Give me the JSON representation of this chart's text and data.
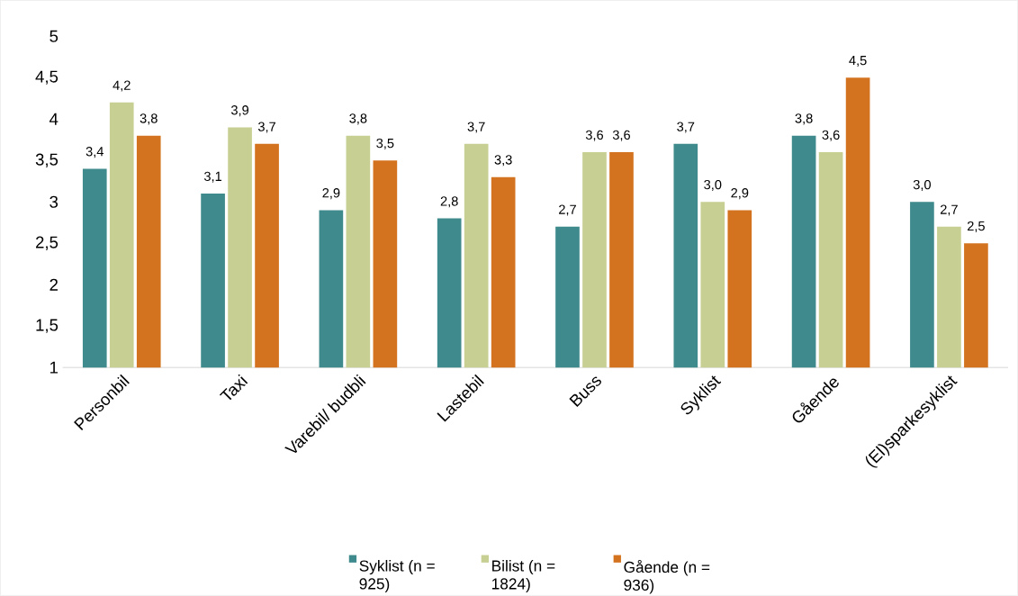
{
  "chart_data": {
    "type": "bar",
    "categories": [
      "Personbil",
      "Taxi",
      "Varebil/ budbli",
      "Lastebil",
      "Buss",
      "Syklist",
      "Gående",
      "(El)sparkesyklist"
    ],
    "series": [
      {
        "name": "Syklist (n = 925)",
        "color": "#3f8a8c",
        "values": [
          3.4,
          3.1,
          2.9,
          2.8,
          2.7,
          3.7,
          3.8,
          3.0
        ],
        "value_labels": [
          "3,4",
          "3,1",
          "2,9",
          "2,8",
          "2,7",
          "3,7",
          "3,8",
          "3,0"
        ]
      },
      {
        "name": "Bilist (n = 1824)",
        "color": "#c8cf92",
        "values": [
          4.2,
          3.9,
          3.8,
          3.7,
          3.6,
          3.0,
          3.6,
          2.7
        ],
        "value_labels": [
          "4,2",
          "3,9",
          "3,8",
          "3,7",
          "3,6",
          "3,0",
          "3,6",
          "2,7"
        ]
      },
      {
        "name": "Gående (n = 936)",
        "color": "#d4731f",
        "values": [
          3.8,
          3.7,
          3.5,
          3.3,
          3.6,
          2.9,
          4.5,
          2.5
        ],
        "value_labels": [
          "3,8",
          "3,7",
          "3,5",
          "3,3",
          "3,6",
          "2,9",
          "4,5",
          "2,5"
        ]
      }
    ],
    "ylim": [
      1,
      5
    ],
    "yticks": [
      1,
      {
        "value": 1.5,
        "label": "1,5"
      },
      2,
      {
        "value": 2.5,
        "label": "2,5"
      },
      3,
      {
        "value": 3.5,
        "label": "3,5"
      },
      4,
      {
        "value": 4.5,
        "label": "4,5"
      },
      5
    ],
    "legend": "bottom"
  }
}
